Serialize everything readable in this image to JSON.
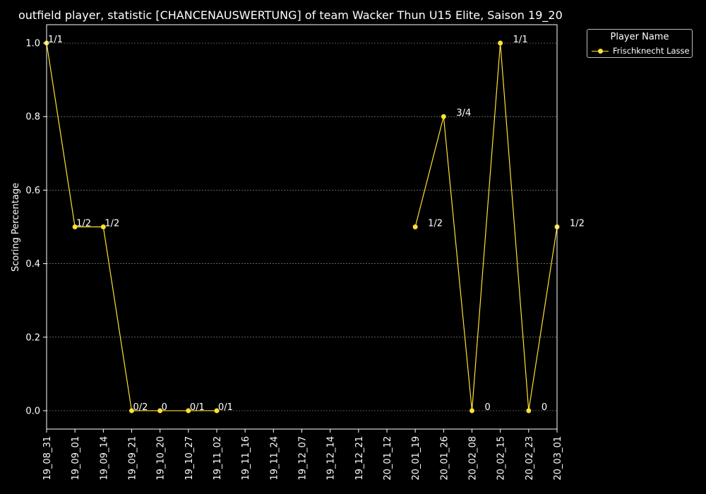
{
  "chart_data": {
    "type": "line",
    "title": "outfield player, statistic [CHANCENAUSWERTUNG] of team Wacker Thun U15 Elite, Saison 19_20",
    "xlabel": "",
    "ylabel": "Scoring Percentage",
    "ylim": [
      -0.05,
      1.05
    ],
    "yticks": [
      0.0,
      0.2,
      0.4,
      0.6,
      0.8,
      1.0
    ],
    "ytick_labels": [
      "0.0",
      "0.2",
      "0.4",
      "0.6",
      "0.8",
      "1.0"
    ],
    "categories": [
      "19_08_31",
      "19_09_01",
      "19_09_14",
      "19_09_21",
      "19_10_20",
      "19_10_27",
      "19_11_02",
      "19_11_16",
      "19_11_24",
      "19_12_07",
      "19_12_14",
      "19_12_21",
      "20_01_12",
      "20_01_19",
      "20_01_26",
      "20_02_08",
      "20_02_15",
      "20_02_23",
      "20_03_01"
    ],
    "grid": true,
    "legend_title": "Player Name",
    "legend_placement": "outside-top-right",
    "colors": {
      "background": "#000000",
      "series": "#ffe033",
      "text": "#ffffff",
      "grid": "#888888"
    },
    "series": [
      {
        "name": "Frischknecht Lasse",
        "values": [
          1.0,
          0.5,
          0.5,
          0.0,
          0.0,
          0.0,
          0.0,
          null,
          null,
          null,
          null,
          null,
          null,
          0.5,
          0.8,
          0.0,
          1.0,
          0.0,
          0.5
        ],
        "labels": [
          "1/1",
          "1/2",
          "1/2",
          "0/2",
          "0",
          "0/1",
          "0/1",
          "",
          "",
          "",
          "",
          "",
          "",
          "1/2",
          "3/4",
          "0",
          "1/1",
          "0",
          "1/2"
        ]
      }
    ]
  }
}
